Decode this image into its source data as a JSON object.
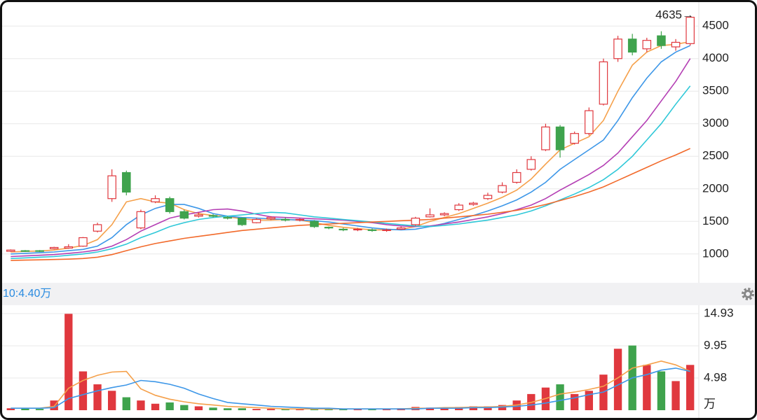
{
  "chart_data": {
    "type": "candlestick",
    "annotation": "4635→",
    "volume_header": "10:4.40万",
    "volume_unit": "万",
    "up_color": "#e0383e",
    "down_color": "#3fa34d",
    "ylim": [
      600,
      4900
    ],
    "yticks": [
      1000,
      1500,
      2000,
      2500,
      3000,
      3500,
      4000,
      4500
    ],
    "grid": true,
    "open": [
      1040,
      1050,
      1050,
      1080,
      1090,
      1120,
      1350,
      1850,
      2250,
      1400,
      1800,
      1850,
      1650,
      1580,
      1590,
      1560,
      1550,
      1480,
      1540,
      1530,
      1520,
      1500,
      1410,
      1380,
      1370,
      1370,
      1360,
      1380,
      1450,
      1570,
      1600,
      1680,
      1760,
      1850,
      1950,
      2100,
      2300,
      2600,
      2950,
      2700,
      2850,
      3300,
      4000,
      4300,
      4150,
      4350,
      4180,
      4230
    ],
    "close": [
      1060,
      1045,
      1040,
      1100,
      1110,
      1250,
      1450,
      2200,
      1950,
      1650,
      1850,
      1650,
      1550,
      1600,
      1580,
      1550,
      1450,
      1530,
      1560,
      1520,
      1530,
      1420,
      1400,
      1370,
      1380,
      1360,
      1370,
      1400,
      1550,
      1600,
      1620,
      1750,
      1780,
      1900,
      2050,
      2250,
      2450,
      2950,
      2600,
      2850,
      3200,
      3950,
      4300,
      4100,
      4280,
      4200,
      4250,
      4635
    ],
    "high": [
      1070,
      1060,
      1060,
      1110,
      1150,
      1260,
      1480,
      2300,
      2280,
      1680,
      1900,
      1880,
      1680,
      1640,
      1610,
      1580,
      1560,
      1550,
      1580,
      1560,
      1550,
      1520,
      1420,
      1400,
      1400,
      1390,
      1390,
      1420,
      1570,
      1700,
      1640,
      1780,
      1800,
      1940,
      2100,
      2300,
      2500,
      3000,
      2980,
      2880,
      3250,
      4000,
      4350,
      4380,
      4320,
      4420,
      4300,
      4640
    ],
    "low": [
      1030,
      1030,
      1030,
      1070,
      1080,
      1110,
      1330,
      1800,
      1900,
      1380,
      1780,
      1620,
      1530,
      1560,
      1560,
      1530,
      1430,
      1470,
      1520,
      1500,
      1500,
      1400,
      1380,
      1350,
      1350,
      1340,
      1340,
      1370,
      1430,
      1560,
      1580,
      1660,
      1740,
      1830,
      1930,
      2080,
      2280,
      2580,
      2480,
      2680,
      2820,
      3280,
      3950,
      4050,
      4100,
      4150,
      4120,
      4200
    ],
    "series": [
      {
        "color": "#f5a04a",
        "values": [
          1030,
          1040,
          1045,
          1060,
          1090,
          1130,
          1220,
          1450,
          1800,
          1850,
          1800,
          1780,
          1680,
          1620,
          1590,
          1570,
          1540,
          1520,
          1520,
          1530,
          1520,
          1480,
          1440,
          1410,
          1390,
          1370,
          1370,
          1380,
          1420,
          1500,
          1560,
          1620,
          1700,
          1780,
          1870,
          1980,
          2150,
          2380,
          2600,
          2700,
          2800,
          3050,
          3500,
          3900,
          4100,
          4200,
          4220,
          4260
        ]
      },
      {
        "color": "#3d97e8",
        "values": [
          1000,
          1010,
          1020,
          1030,
          1050,
          1070,
          1120,
          1250,
          1450,
          1600,
          1700,
          1760,
          1760,
          1700,
          1620,
          1580,
          1560,
          1550,
          1540,
          1530,
          1520,
          1510,
          1490,
          1460,
          1430,
          1400,
          1380,
          1370,
          1380,
          1420,
          1470,
          1530,
          1590,
          1660,
          1740,
          1830,
          1950,
          2100,
          2300,
          2450,
          2600,
          2750,
          3050,
          3400,
          3700,
          3950,
          4100,
          4200
        ]
      },
      {
        "color": "#b43fb4",
        "values": [
          960,
          970,
          980,
          990,
          1010,
          1030,
          1060,
          1120,
          1220,
          1350,
          1450,
          1550,
          1600,
          1640,
          1680,
          1690,
          1660,
          1610,
          1570,
          1560,
          1550,
          1540,
          1530,
          1520,
          1500,
          1480,
          1450,
          1430,
          1420,
          1430,
          1460,
          1490,
          1530,
          1570,
          1620,
          1680,
          1750,
          1850,
          1980,
          2100,
          2220,
          2360,
          2550,
          2800,
          3050,
          3350,
          3650,
          4000
        ]
      },
      {
        "color": "#2fc8d8",
        "values": [
          930,
          940,
          950,
          960,
          980,
          1000,
          1030,
          1080,
          1150,
          1250,
          1330,
          1420,
          1480,
          1530,
          1560,
          1580,
          1600,
          1620,
          1640,
          1630,
          1600,
          1570,
          1550,
          1530,
          1510,
          1490,
          1470,
          1450,
          1430,
          1420,
          1440,
          1460,
          1490,
          1520,
          1560,
          1600,
          1660,
          1740,
          1830,
          1920,
          2020,
          2140,
          2300,
          2500,
          2750,
          3000,
          3300,
          3580
        ]
      },
      {
        "color": "#f26a2b",
        "values": [
          900,
          905,
          910,
          915,
          920,
          930,
          950,
          990,
          1050,
          1110,
          1160,
          1200,
          1240,
          1270,
          1300,
          1330,
          1360,
          1380,
          1400,
          1420,
          1440,
          1450,
          1460,
          1470,
          1480,
          1490,
          1500,
          1510,
          1520,
          1530,
          1550,
          1570,
          1590,
          1610,
          1640,
          1670,
          1710,
          1760,
          1820,
          1880,
          1950,
          2030,
          2130,
          2230,
          2330,
          2430,
          2520,
          2620
        ]
      }
    ],
    "volume": [
      0.3,
      0.3,
      0.2,
      1.5,
      14.9,
      6.0,
      4.0,
      3.0,
      2.0,
      1.5,
      1.0,
      1.2,
      0.8,
      0.6,
      0.4,
      0.3,
      0.3,
      0.2,
      0.2,
      0.2,
      0.2,
      0.2,
      0.2,
      0.2,
      0.2,
      0.2,
      0.2,
      0.3,
      0.5,
      0.4,
      0.4,
      0.5,
      0.6,
      0.6,
      0.8,
      1.5,
      2.5,
      3.5,
      4.0,
      2.5,
      3.0,
      5.5,
      9.5,
      10.0,
      7.0,
      6.0,
      4.5,
      7.0
    ],
    "volume_series": [
      {
        "color": "#f5a04a",
        "values": [
          0.3,
          0.3,
          0.3,
          0.6,
          3.4,
          4.6,
          5.4,
          5.9,
          6.0,
          3.3,
          2.3,
          1.7,
          1.3,
          1.0,
          0.8,
          0.6,
          0.5,
          0.4,
          0.3,
          0.2,
          0.2,
          0.2,
          0.2,
          0.2,
          0.2,
          0.2,
          0.2,
          0.2,
          0.3,
          0.3,
          0.4,
          0.4,
          0.5,
          0.5,
          0.6,
          0.8,
          1.2,
          1.8,
          2.5,
          2.8,
          3.2,
          3.7,
          5.0,
          6.5,
          7.0,
          7.6,
          7.0,
          6.0
        ]
      },
      {
        "color": "#3d97e8",
        "values": [
          0.3,
          0.3,
          0.3,
          0.4,
          1.8,
          2.4,
          3.0,
          3.5,
          3.9,
          4.6,
          4.4,
          4.0,
          3.4,
          2.5,
          1.8,
          1.2,
          1.0,
          0.8,
          0.6,
          0.5,
          0.4,
          0.3,
          0.3,
          0.2,
          0.2,
          0.2,
          0.2,
          0.2,
          0.2,
          0.3,
          0.3,
          0.3,
          0.4,
          0.4,
          0.5,
          0.6,
          0.8,
          1.1,
          1.5,
          1.9,
          2.4,
          2.8,
          3.9,
          5.0,
          5.5,
          6.2,
          6.5,
          6.0
        ]
      }
    ],
    "vlim": [
      0,
      15.8
    ],
    "vticks": [
      4.98,
      9.95,
      14.93
    ]
  }
}
